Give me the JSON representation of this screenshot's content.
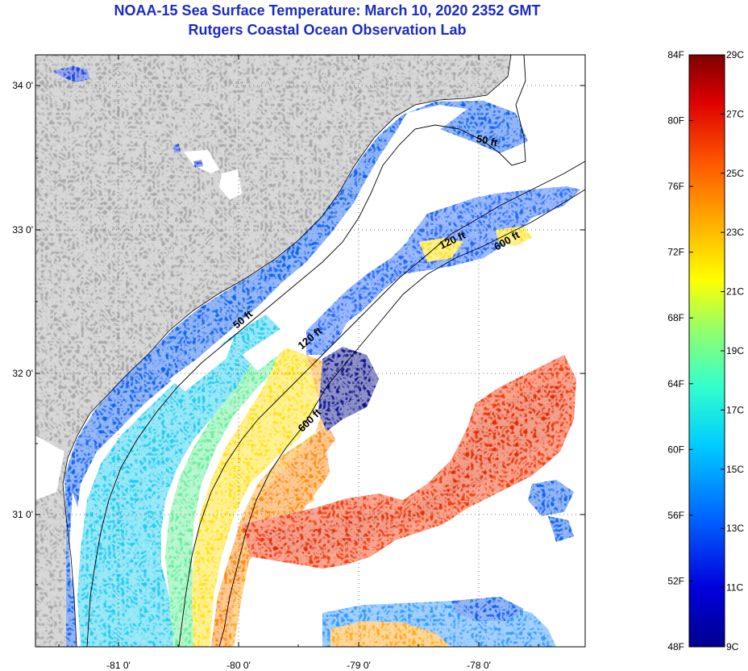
{
  "title": {
    "line1": "NOAA-15 Sea Surface Temperature:  March 10, 2020 2352 GMT",
    "line2": "Rutgers Coastal Ocean Observation Lab"
  },
  "axes": {
    "longitude_ticks": [
      "-81 0'",
      "-80 0'",
      "-79 0'",
      "-78 0'"
    ],
    "latitude_ticks": [
      "34 0'",
      "33 0'",
      "32 0'",
      "31 0'"
    ]
  },
  "contour_labels": [
    "50 ft",
    "120 ft",
    "600 ft",
    "50 ft",
    "120 ft",
    "600 ft"
  ],
  "colorbar": {
    "fahrenheit": [
      "84F",
      "80F",
      "76F",
      "72F",
      "68F",
      "64F",
      "60F",
      "56F",
      "52F",
      "48F"
    ],
    "celsius": [
      "29C",
      "27C",
      "25C",
      "23C",
      "21C",
      "19C",
      "17C",
      "15C",
      "13C",
      "11C",
      "9C"
    ]
  },
  "colors": {
    "land": "#a9a9a9",
    "cloud": "#ffffff",
    "title": "#1c2bc4",
    "scale": [
      "#7f0000",
      "#cc0000",
      "#ff3300",
      "#ff8800",
      "#ffcc00",
      "#ffff33",
      "#aaff55",
      "#44ffbb",
      "#00ddff",
      "#0099ff",
      "#0044ff",
      "#0000cc",
      "#00008f"
    ]
  }
}
